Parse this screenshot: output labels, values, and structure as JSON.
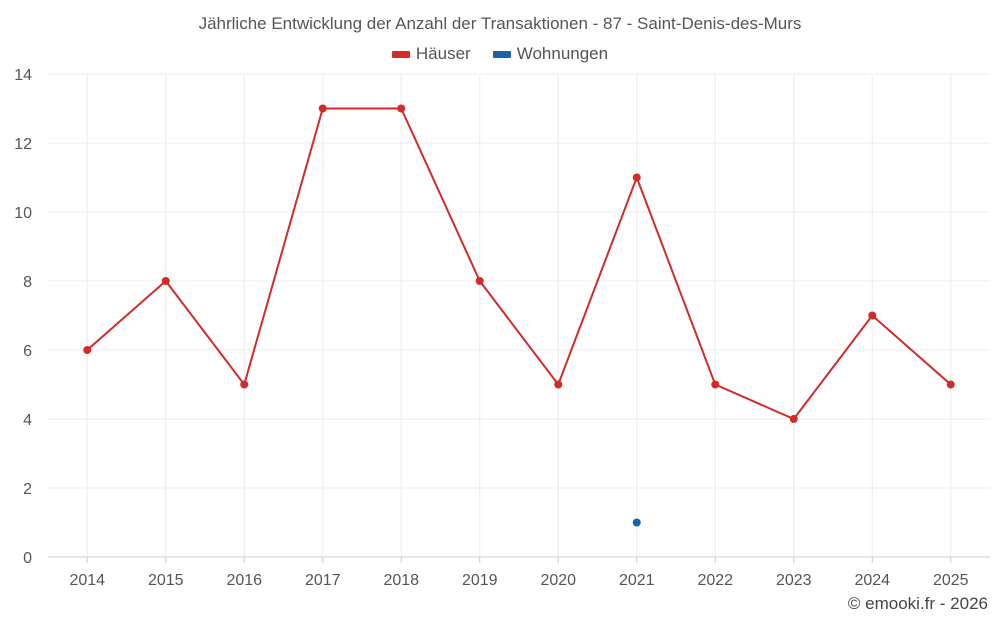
{
  "chart_data": {
    "type": "line",
    "title": "Jährliche Entwicklung der Anzahl der Transaktionen - 87 - Saint-Denis-des-Murs",
    "xlabel": "",
    "ylabel": "",
    "categories": [
      "2014",
      "2015",
      "2016",
      "2017",
      "2018",
      "2019",
      "2020",
      "2021",
      "2022",
      "2023",
      "2024",
      "2025"
    ],
    "ylim": [
      0,
      14
    ],
    "yticks": [
      "0",
      "2",
      "4",
      "6",
      "8",
      "10",
      "12",
      "14"
    ],
    "grid": true,
    "legend_position": "top-center",
    "series": [
      {
        "name": "Häuser",
        "color": "#d32a2a",
        "values": [
          6,
          8,
          5,
          13,
          13,
          8,
          5,
          11,
          5,
          4,
          7,
          5
        ]
      },
      {
        "name": "Wohnungen",
        "color": "#1763a6",
        "values": [
          null,
          null,
          null,
          null,
          null,
          null,
          null,
          1,
          null,
          null,
          null,
          null
        ]
      }
    ]
  },
  "credit": "© emooki.fr - 2026"
}
